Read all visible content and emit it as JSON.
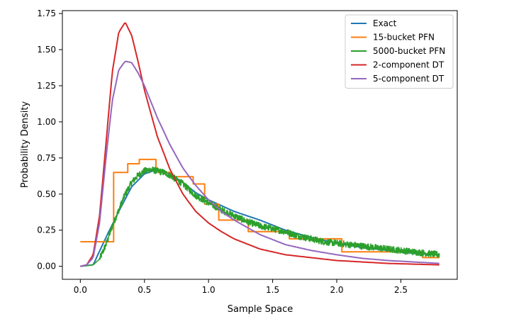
{
  "chart_data": {
    "type": "line",
    "title": "",
    "xlabel": "Sample Space",
    "ylabel": "Probability Density",
    "xlim": [
      -0.14,
      2.94
    ],
    "ylim": [
      -0.09,
      1.77
    ],
    "xticks": [
      0.0,
      0.5,
      1.0,
      1.5,
      2.0,
      2.5
    ],
    "xtick_labels": [
      "0.0",
      "0.5",
      "1.0",
      "1.5",
      "2.0",
      "2.5"
    ],
    "yticks": [
      0.0,
      0.25,
      0.5,
      0.75,
      1.0,
      1.25,
      1.5,
      1.75
    ],
    "ytick_labels": [
      "0.00",
      "0.25",
      "0.50",
      "0.75",
      "1.00",
      "1.25",
      "1.50",
      "1.75"
    ],
    "grid": false,
    "legend_position": "top-right",
    "series": [
      {
        "name": "Exact",
        "color": "#1f77b4",
        "style": "line",
        "x": [
          0.0,
          0.1,
          0.2,
          0.3,
          0.4,
          0.5,
          0.6,
          0.7,
          0.8,
          0.9,
          1.0,
          1.2,
          1.4,
          1.6,
          1.8,
          2.0,
          2.2,
          2.4,
          2.6,
          2.8
        ],
        "y": [
          0.0,
          0.01,
          0.2,
          0.38,
          0.55,
          0.64,
          0.67,
          0.64,
          0.58,
          0.51,
          0.46,
          0.38,
          0.32,
          0.25,
          0.2,
          0.16,
          0.13,
          0.11,
          0.09,
          0.08
        ]
      },
      {
        "name": "15-bucket PFN",
        "color": "#ff7f0e",
        "style": "step",
        "edges": [
          0.0,
          0.26,
          0.37,
          0.46,
          0.59,
          0.71,
          0.88,
          0.97,
          1.08,
          1.31,
          1.63,
          2.04,
          2.67,
          2.8
        ],
        "values": [
          0.17,
          0.65,
          0.71,
          0.74,
          0.65,
          0.62,
          0.57,
          0.43,
          0.32,
          0.24,
          0.19,
          0.1,
          0.06
        ]
      },
      {
        "name": "5000-bucket PFN",
        "color": "#2ca02c",
        "style": "noisy",
        "x": [
          0.0,
          0.1,
          0.15,
          0.2,
          0.25,
          0.3,
          0.35,
          0.4,
          0.45,
          0.5,
          0.55,
          0.6,
          0.65,
          0.7,
          0.75,
          0.8,
          0.85,
          0.9,
          1.0,
          1.1,
          1.2,
          1.3,
          1.4,
          1.5,
          1.6,
          1.7,
          1.8,
          1.9,
          2.0,
          2.1,
          2.2,
          2.3,
          2.4,
          2.5,
          2.6,
          2.7,
          2.8
        ],
        "y": [
          0.0,
          0.01,
          0.05,
          0.15,
          0.28,
          0.39,
          0.5,
          0.58,
          0.63,
          0.66,
          0.67,
          0.66,
          0.65,
          0.63,
          0.6,
          0.57,
          0.53,
          0.49,
          0.44,
          0.39,
          0.35,
          0.31,
          0.28,
          0.26,
          0.24,
          0.21,
          0.19,
          0.17,
          0.16,
          0.15,
          0.14,
          0.13,
          0.12,
          0.11,
          0.1,
          0.09,
          0.08
        ]
      },
      {
        "name": "2-component DT",
        "color": "#d62728",
        "style": "line",
        "x": [
          0.0,
          0.05,
          0.1,
          0.15,
          0.2,
          0.25,
          0.3,
          0.35,
          0.4,
          0.45,
          0.5,
          0.6,
          0.7,
          0.8,
          0.9,
          1.0,
          1.1,
          1.2,
          1.4,
          1.6,
          1.8,
          2.0,
          2.2,
          2.4,
          2.6,
          2.8
        ],
        "y": [
          0.0,
          0.01,
          0.08,
          0.35,
          0.85,
          1.35,
          1.62,
          1.69,
          1.6,
          1.42,
          1.22,
          0.9,
          0.67,
          0.5,
          0.38,
          0.3,
          0.24,
          0.19,
          0.12,
          0.08,
          0.06,
          0.04,
          0.03,
          0.02,
          0.015,
          0.01
        ]
      },
      {
        "name": "5-component DT",
        "color": "#9467bd",
        "style": "line",
        "x": [
          0.0,
          0.05,
          0.1,
          0.15,
          0.2,
          0.25,
          0.3,
          0.35,
          0.4,
          0.45,
          0.5,
          0.6,
          0.7,
          0.8,
          0.9,
          1.0,
          1.1,
          1.2,
          1.4,
          1.6,
          1.8,
          2.0,
          2.2,
          2.4,
          2.6,
          2.8
        ],
        "y": [
          0.0,
          0.01,
          0.06,
          0.3,
          0.75,
          1.15,
          1.36,
          1.42,
          1.41,
          1.34,
          1.25,
          1.03,
          0.84,
          0.68,
          0.56,
          0.46,
          0.38,
          0.32,
          0.22,
          0.15,
          0.11,
          0.08,
          0.055,
          0.04,
          0.03,
          0.02
        ]
      }
    ]
  }
}
